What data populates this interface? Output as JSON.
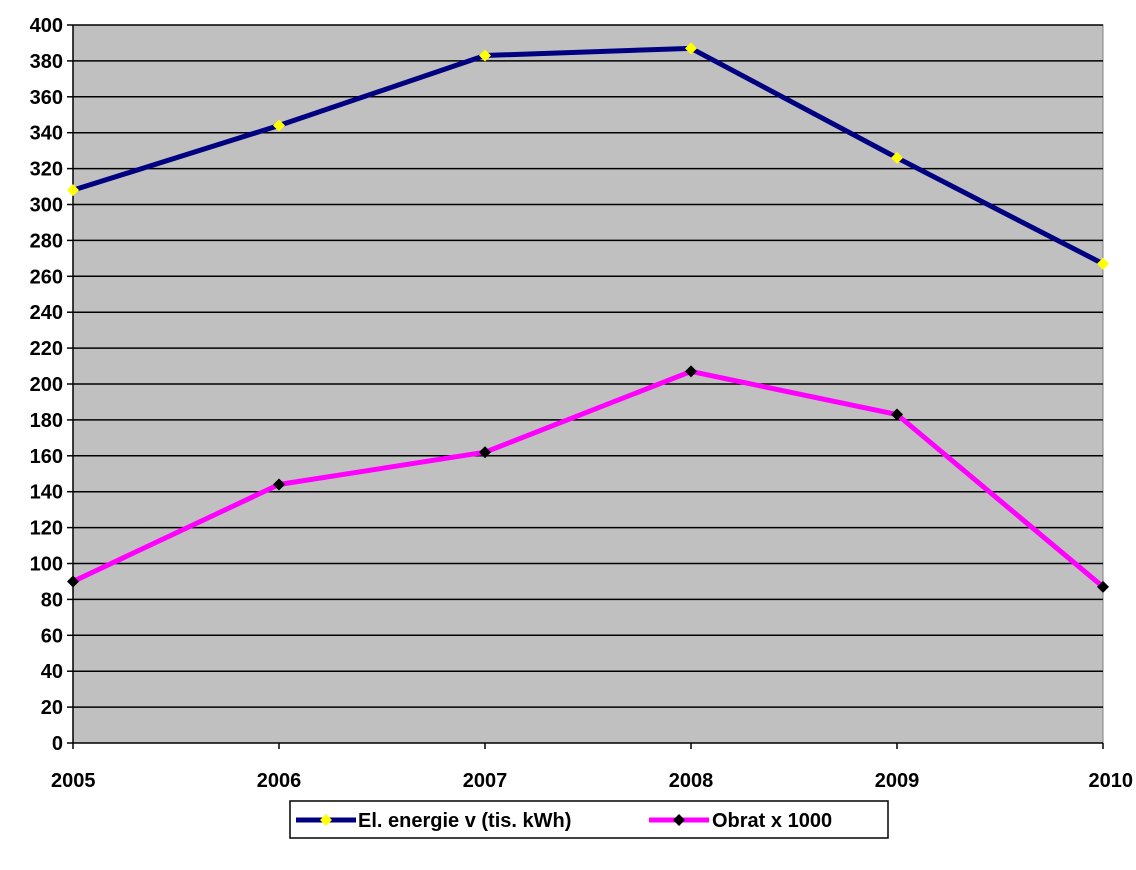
{
  "chart_data": {
    "type": "line",
    "title": "",
    "xlabel": "",
    "ylabel": "",
    "categories": [
      "2005",
      "2006",
      "2007",
      "2008",
      "2009",
      "2010"
    ],
    "ylim": [
      0,
      400
    ],
    "y_ticks": [
      "0",
      "20",
      "40",
      "60",
      "80",
      "100",
      "120",
      "140",
      "160",
      "180",
      "200",
      "220",
      "240",
      "260",
      "280",
      "300",
      "320",
      "340",
      "360",
      "380",
      "400"
    ],
    "grid": true,
    "legend_position": "bottom",
    "plot_background": "#c0c0c0",
    "series": [
      {
        "name": "El. energie v (tis. kWh)",
        "values": [
          308,
          344,
          383,
          387,
          326,
          267
        ],
        "line_color": "#000080",
        "marker_color": "#ffff00",
        "marker": "diamond"
      },
      {
        "name": "Obrat x 1000",
        "values": [
          90,
          144,
          162,
          207,
          183,
          87
        ],
        "line_color": "#ff00ff",
        "marker_color": "#000000",
        "marker": "diamond"
      }
    ]
  }
}
